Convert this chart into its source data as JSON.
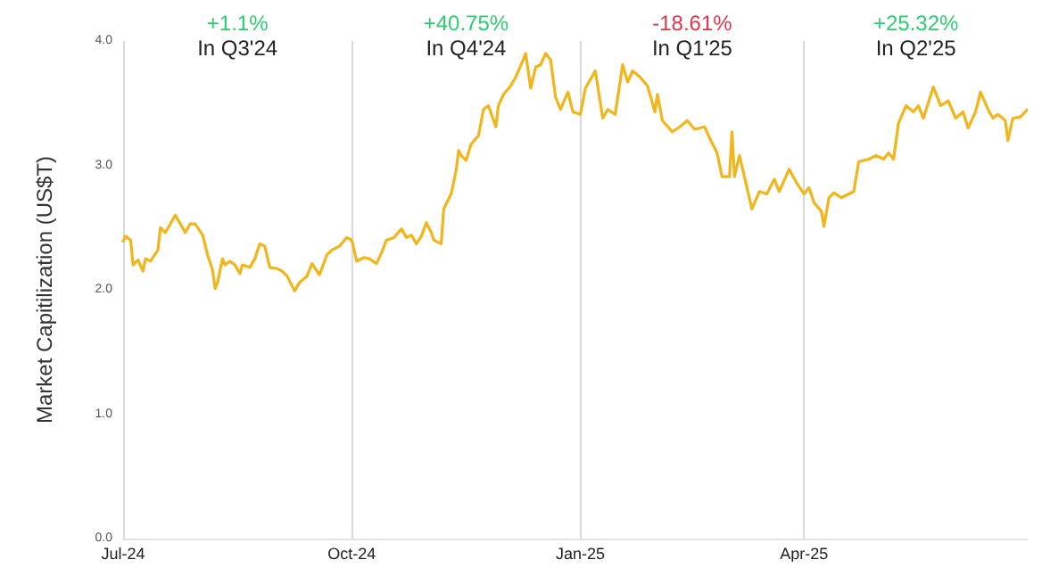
{
  "chart_data": {
    "type": "line",
    "ylabel": "Market Capitilization (US$T)",
    "x": [
      "2024-07-01",
      "2024-07-02",
      "2024-07-04",
      "2024-07-05",
      "2024-07-07",
      "2024-07-09",
      "2024-07-10",
      "2024-07-12",
      "2024-07-15",
      "2024-07-16",
      "2024-07-18",
      "2024-07-20",
      "2024-07-22",
      "2024-07-24",
      "2024-07-26",
      "2024-07-28",
      "2024-07-30",
      "2024-08-02",
      "2024-08-04",
      "2024-08-06",
      "2024-08-07",
      "2024-08-08",
      "2024-08-10",
      "2024-08-11",
      "2024-08-13",
      "2024-08-15",
      "2024-08-17",
      "2024-08-18",
      "2024-08-21",
      "2024-08-23",
      "2024-08-25",
      "2024-08-27",
      "2024-08-29",
      "2024-09-01",
      "2024-09-03",
      "2024-09-05",
      "2024-09-08",
      "2024-09-10",
      "2024-09-13",
      "2024-09-15",
      "2024-09-18",
      "2024-09-21",
      "2024-09-23",
      "2024-09-26",
      "2024-09-29",
      "2024-10-01",
      "2024-10-03",
      "2024-10-06",
      "2024-10-08",
      "2024-10-11",
      "2024-10-13",
      "2024-10-15",
      "2024-10-18",
      "2024-10-21",
      "2024-10-23",
      "2024-10-25",
      "2024-10-27",
      "2024-10-29",
      "2024-10-31",
      "2024-11-02",
      "2024-11-03",
      "2024-11-06",
      "2024-11-07",
      "2024-11-10",
      "2024-11-12",
      "2024-11-13",
      "2024-11-14",
      "2024-11-16",
      "2024-11-18",
      "2024-11-21",
      "2024-11-23",
      "2024-11-25",
      "2024-11-28",
      "2024-11-29",
      "2024-12-01",
      "2024-12-04",
      "2024-12-06",
      "2024-12-09",
      "2024-12-10",
      "2024-12-12",
      "2024-12-14",
      "2024-12-16",
      "2024-12-18",
      "2024-12-20",
      "2024-12-22",
      "2024-12-24",
      "2024-12-27",
      "2024-12-29",
      "2025-01-01",
      "2025-01-03",
      "2025-01-07",
      "2025-01-10",
      "2025-01-12",
      "2025-01-15",
      "2025-01-18",
      "2025-01-20",
      "2025-01-22",
      "2025-01-25",
      "2025-01-28",
      "2025-01-31",
      "2025-02-01",
      "2025-02-03",
      "2025-02-07",
      "2025-02-10",
      "2025-02-13",
      "2025-02-16",
      "2025-02-20",
      "2025-02-22",
      "2025-02-25",
      "2025-02-27",
      "2025-03-02",
      "2025-03-03",
      "2025-03-04",
      "2025-03-06",
      "2025-03-08",
      "2025-03-11",
      "2025-03-14",
      "2025-03-17",
      "2025-03-20",
      "2025-03-22",
      "2025-03-26",
      "2025-03-29",
      "2025-04-01",
      "2025-04-03",
      "2025-04-05",
      "2025-04-08",
      "2025-04-09",
      "2025-04-11",
      "2025-04-13",
      "2025-04-16",
      "2025-04-21",
      "2025-04-23",
      "2025-04-27",
      "2025-04-30",
      "2025-05-03",
      "2025-05-05",
      "2025-05-07",
      "2025-05-09",
      "2025-05-12",
      "2025-05-15",
      "2025-05-17",
      "2025-05-19",
      "2025-05-23",
      "2025-05-26",
      "2025-05-29",
      "2025-06-01",
      "2025-06-04",
      "2025-06-06",
      "2025-06-09",
      "2025-06-11",
      "2025-06-14",
      "2025-06-16",
      "2025-06-18",
      "2025-06-21",
      "2025-06-22",
      "2025-06-24",
      "2025-06-27",
      "2025-06-30"
    ],
    "series": [
      {
        "color": "#f2b61c",
        "values": [
          2.39,
          2.43,
          2.4,
          2.2,
          2.24,
          2.15,
          2.25,
          2.23,
          2.32,
          2.5,
          2.46,
          2.53,
          2.6,
          2.53,
          2.46,
          2.53,
          2.53,
          2.44,
          2.28,
          2.16,
          2.01,
          2.06,
          2.25,
          2.2,
          2.23,
          2.2,
          2.13,
          2.2,
          2.18,
          2.25,
          2.37,
          2.35,
          2.18,
          2.17,
          2.15,
          2.11,
          1.99,
          2.06,
          2.11,
          2.21,
          2.12,
          2.28,
          2.32,
          2.35,
          2.42,
          2.4,
          2.23,
          2.26,
          2.25,
          2.21,
          2.3,
          2.4,
          2.42,
          2.49,
          2.42,
          2.44,
          2.37,
          2.43,
          2.54,
          2.46,
          2.4,
          2.37,
          2.65,
          2.77,
          2.96,
          3.12,
          3.08,
          3.04,
          3.17,
          3.24,
          3.45,
          3.48,
          3.31,
          3.48,
          3.57,
          3.64,
          3.71,
          3.85,
          3.9,
          3.62,
          3.79,
          3.81,
          3.9,
          3.85,
          3.55,
          3.45,
          3.59,
          3.43,
          3.41,
          3.62,
          3.76,
          3.38,
          3.45,
          3.41,
          3.81,
          3.67,
          3.76,
          3.71,
          3.64,
          3.43,
          3.57,
          3.36,
          3.27,
          3.31,
          3.36,
          3.29,
          3.31,
          3.22,
          3.1,
          2.91,
          2.91,
          3.27,
          2.91,
          3.08,
          2.91,
          2.65,
          2.79,
          2.77,
          2.89,
          2.79,
          2.97,
          2.86,
          2.77,
          2.82,
          2.7,
          2.63,
          2.51,
          2.74,
          2.78,
          2.74,
          2.79,
          3.03,
          3.05,
          3.08,
          3.05,
          3.1,
          3.05,
          3.34,
          3.48,
          3.43,
          3.48,
          3.38,
          3.63,
          3.48,
          3.52,
          3.38,
          3.43,
          3.3,
          3.43,
          3.59,
          3.45,
          3.38,
          3.41,
          3.36,
          3.2,
          3.38,
          3.39,
          3.45
        ]
      }
    ],
    "xticks": [
      {
        "value": "2024-07-01",
        "label": "Jul-24"
      },
      {
        "value": "2024-10-01",
        "label": "Oct-24"
      },
      {
        "value": "2025-01-01",
        "label": "Jan-25"
      },
      {
        "value": "2025-04-01",
        "label": "Apr-25"
      }
    ],
    "ylim": [
      0,
      4
    ],
    "yticks": [
      {
        "value": 0,
        "label": "0.0"
      },
      {
        "value": 1,
        "label": "1.0"
      },
      {
        "value": 2,
        "label": "2.0"
      },
      {
        "value": 3,
        "label": "3.0"
      },
      {
        "value": 4,
        "label": "4.0"
      }
    ],
    "xlim": [
      "2024-07-01",
      "2025-06-30"
    ],
    "grid": "x",
    "marker": "none",
    "line_style": "solid",
    "annotations": [
      "+1.1%",
      "In Q3'24",
      "+40.75%",
      "In Q4'24",
      "-18.61%",
      "In Q1'25",
      "+25.32%",
      "In Q2'25"
    ]
  }
}
